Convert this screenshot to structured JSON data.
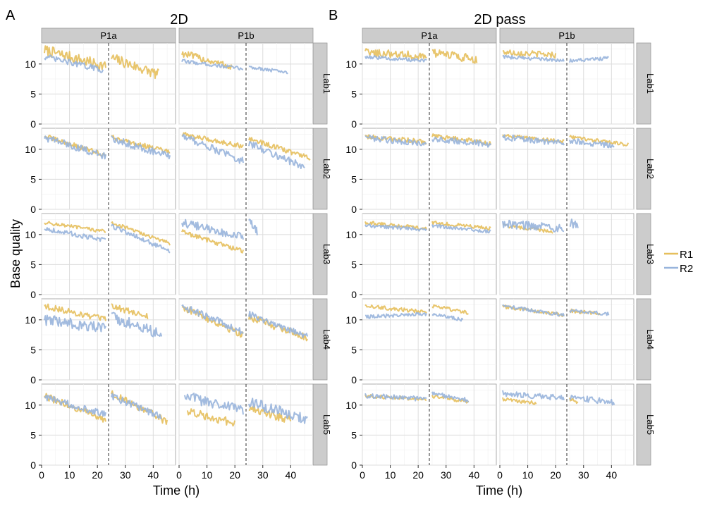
{
  "figure": {
    "ylabel": "Base quality",
    "xlabel": "Time (h)",
    "legend": {
      "position": "right",
      "items": [
        {
          "name": "R1",
          "color": "#e6bf5c"
        },
        {
          "name": "R2",
          "color": "#98b4dc"
        }
      ]
    }
  },
  "panels": [
    {
      "letter": "A",
      "title": "2D",
      "columns": [
        "P1a",
        "P1b"
      ],
      "rows": [
        "Lab1",
        "Lab2",
        "Lab3",
        "Lab4",
        "Lab5"
      ]
    },
    {
      "letter": "B",
      "title": "2D pass",
      "columns": [
        "P1a",
        "P1b"
      ],
      "rows": [
        "Lab1",
        "Lab2",
        "Lab3",
        "Lab4",
        "Lab5"
      ]
    }
  ],
  "chart_data": {
    "type": "line",
    "x_label": "Time (h)",
    "y_label": "Base quality",
    "xlim": [
      0,
      48
    ],
    "ylim": [
      0,
      13.5
    ],
    "x_ticks": [
      0,
      10,
      20,
      30,
      40
    ],
    "y_ticks": [
      0,
      5,
      10
    ],
    "vline_x": 24,
    "vline_style": "dashed",
    "grid": true,
    "legend_position": "right",
    "series_names": [
      "R1",
      "R2"
    ],
    "colors": {
      "R1": "#e6bf5c",
      "R2": "#98b4dc"
    },
    "facets": [
      {
        "panel": "2D",
        "col": "P1a",
        "row": "Lab1",
        "R1": {
          "seg1": [
            1,
            23,
            12.3,
            9.6
          ],
          "seg2": [
            25,
            42,
            11.0,
            8.2
          ],
          "noise": 0.9
        },
        "R2": {
          "seg1": [
            1,
            22,
            11.2,
            9.0
          ],
          "seg2": null,
          "noise": 0.5
        }
      },
      {
        "panel": "2D",
        "col": "P1b",
        "row": "Lab1",
        "R1": {
          "seg1": [
            1,
            19,
            11.8,
            9.5
          ],
          "seg2": null,
          "noise": 0.6
        },
        "R2": {
          "seg1": [
            1,
            23,
            10.5,
            9.2
          ],
          "seg2": [
            25,
            39,
            9.5,
            8.6
          ],
          "noise": 0.3
        }
      },
      {
        "panel": "2D",
        "col": "P1a",
        "row": "Lab2",
        "R1": {
          "seg1": [
            1,
            23,
            12.2,
            9.0
          ],
          "seg2": [
            25,
            46,
            12.0,
            9.5
          ],
          "noise": 0.4
        },
        "R2": {
          "seg1": [
            1,
            23,
            12.0,
            8.8
          ],
          "seg2": [
            25,
            46,
            11.8,
            8.8
          ],
          "noise": 0.6
        }
      },
      {
        "panel": "2D",
        "col": "P1b",
        "row": "Lab2",
        "R1": {
          "seg1": [
            1,
            23,
            12.5,
            10.5
          ],
          "seg2": [
            25,
            47,
            11.8,
            8.5
          ],
          "noise": 0.4
        },
        "R2": {
          "seg1": [
            1,
            23,
            12.3,
            8.0
          ],
          "seg2": [
            25,
            45,
            11.0,
            7.0
          ],
          "noise": 0.6
        }
      },
      {
        "panel": "2D",
        "col": "P1a",
        "row": "Lab3",
        "R1": {
          "seg1": [
            1,
            23,
            12.0,
            10.5
          ],
          "seg2": [
            25,
            46,
            12.0,
            8.5
          ],
          "noise": 0.3
        },
        "R2": {
          "seg1": [
            1,
            23,
            11.0,
            9.0
          ],
          "seg2": [
            25,
            46,
            11.5,
            7.2
          ],
          "noise": 0.4
        }
      },
      {
        "panel": "2D",
        "col": "P1b",
        "row": "Lab3",
        "R1": {
          "seg1": [
            1,
            23,
            10.5,
            7.2
          ],
          "seg2": null,
          "noise": 0.4
        },
        "R2": {
          "seg1": [
            1,
            23,
            12.0,
            9.5
          ],
          "seg2": [
            25,
            28,
            12.2,
            10.5
          ],
          "noise": 0.7
        }
      },
      {
        "panel": "2D",
        "col": "P1a",
        "row": "Lab4",
        "R1": {
          "seg1": [
            1,
            23,
            12.3,
            10.0
          ],
          "seg2": [
            25,
            38,
            12.3,
            10.5
          ],
          "noise": 0.5
        },
        "R2": {
          "seg1": [
            1,
            23,
            10.0,
            8.5
          ],
          "seg2": [
            25,
            43,
            10.5,
            7.5
          ],
          "noise": 0.9
        }
      },
      {
        "panel": "2D",
        "col": "P1b",
        "row": "Lab4",
        "R1": {
          "seg1": [
            1,
            23,
            12.2,
            7.5
          ],
          "seg2": [
            25,
            46,
            10.5,
            7.0
          ],
          "noise": 0.6
        },
        "R2": {
          "seg1": [
            1,
            23,
            12.3,
            8.0
          ],
          "seg2": [
            25,
            46,
            11.0,
            7.2
          ],
          "noise": 0.6
        }
      },
      {
        "panel": "2D",
        "col": "P1a",
        "row": "Lab5",
        "R1": {
          "seg1": [
            1,
            23,
            11.5,
            7.5
          ],
          "seg2": [
            25,
            45,
            12.0,
            7.2
          ],
          "noise": 0.6
        },
        "R2": {
          "seg1": [
            1,
            23,
            11.3,
            8.5
          ],
          "seg2": [
            25,
            43,
            11.5,
            8.0
          ],
          "noise": 0.6
        }
      },
      {
        "panel": "2D",
        "col": "P1b",
        "row": "Lab5",
        "R1": {
          "seg1": [
            3,
            20,
            9.0,
            7.0
          ],
          "seg2": [
            25,
            40,
            9.5,
            7.5
          ],
          "noise": 0.7
        },
        "R2": {
          "seg1": [
            2,
            23,
            11.5,
            9.0
          ],
          "seg2": [
            25,
            46,
            10.5,
            7.5
          ],
          "noise": 0.9
        }
      },
      {
        "panel": "2D pass",
        "col": "P1a",
        "row": "Lab1",
        "R1": {
          "seg1": [
            1,
            23,
            12.0,
            11.3
          ],
          "seg2": [
            25,
            41,
            11.8,
            10.8
          ],
          "noise": 0.7
        },
        "R2": {
          "seg1": [
            1,
            23,
            11.2,
            10.5
          ],
          "seg2": null,
          "noise": 0.3
        }
      },
      {
        "panel": "2D pass",
        "col": "P1b",
        "row": "Lab1",
        "R1": {
          "seg1": [
            1,
            20,
            12.0,
            11.5
          ],
          "seg2": null,
          "noise": 0.5
        },
        "R2": {
          "seg1": [
            1,
            23,
            11.2,
            10.6
          ],
          "seg2": [
            25,
            39,
            10.5,
            11.0
          ],
          "noise": 0.3
        }
      },
      {
        "panel": "2D pass",
        "col": "P1a",
        "row": "Lab2",
        "R1": {
          "seg1": [
            1,
            23,
            12.2,
            11.2
          ],
          "seg2": [
            25,
            46,
            12.2,
            11.0
          ],
          "noise": 0.4
        },
        "R2": {
          "seg1": [
            1,
            23,
            12.0,
            10.8
          ],
          "seg2": [
            25,
            46,
            11.8,
            10.8
          ],
          "noise": 0.5
        }
      },
      {
        "panel": "2D pass",
        "col": "P1b",
        "row": "Lab2",
        "R1": {
          "seg1": [
            1,
            23,
            12.3,
            11.3
          ],
          "seg2": [
            25,
            46,
            12.0,
            10.8
          ],
          "noise": 0.3
        },
        "R2": {
          "seg1": [
            1,
            23,
            12.0,
            11.0
          ],
          "seg2": [
            25,
            41,
            11.5,
            10.5
          ],
          "noise": 0.5
        }
      },
      {
        "panel": "2D pass",
        "col": "P1a",
        "row": "Lab3",
        "R1": {
          "seg1": [
            1,
            23,
            12.0,
            11.0
          ],
          "seg2": [
            25,
            46,
            12.0,
            11.0
          ],
          "noise": 0.3
        },
        "R2": {
          "seg1": [
            1,
            23,
            11.5,
            10.8
          ],
          "seg2": [
            25,
            46,
            11.5,
            10.5
          ],
          "noise": 0.3
        }
      },
      {
        "panel": "2D pass",
        "col": "P1b",
        "row": "Lab3",
        "R1": {
          "seg1": [
            1,
            19,
            11.5,
            10.5
          ],
          "seg2": null,
          "noise": 0.3
        },
        "R2": {
          "seg1": [
            1,
            23,
            11.8,
            11.0
          ],
          "seg2": [
            25,
            28,
            12.0,
            11.5
          ],
          "noise": 0.7
        }
      },
      {
        "panel": "2D pass",
        "col": "P1a",
        "row": "Lab4",
        "R1": {
          "seg1": [
            1,
            23,
            12.3,
            11.3
          ],
          "seg2": [
            25,
            38,
            12.3,
            11.2
          ],
          "noise": 0.3
        },
        "R2": {
          "seg1": [
            1,
            23,
            10.5,
            11.0
          ],
          "seg2": [
            25,
            36,
            11.0,
            10.0
          ],
          "noise": 0.3
        }
      },
      {
        "panel": "2D pass",
        "col": "P1b",
        "row": "Lab4",
        "R1": {
          "seg1": [
            1,
            23,
            12.2,
            10.8
          ],
          "seg2": [
            25,
            36,
            11.5,
            11.0
          ],
          "noise": 0.3
        },
        "R2": {
          "seg1": [
            1,
            23,
            12.3,
            10.8
          ],
          "seg2": [
            25,
            39,
            11.5,
            11.0
          ],
          "noise": 0.3
        }
      },
      {
        "panel": "2D pass",
        "col": "P1a",
        "row": "Lab5",
        "R1": {
          "seg1": [
            1,
            23,
            11.5,
            11.0
          ],
          "seg2": [
            25,
            38,
            11.5,
            10.5
          ],
          "noise": 0.3
        },
        "R2": {
          "seg1": [
            1,
            23,
            11.6,
            11.0
          ],
          "seg2": [
            25,
            38,
            12.0,
            10.8
          ],
          "noise": 0.4
        }
      },
      {
        "panel": "2D pass",
        "col": "P1b",
        "row": "Lab5",
        "R1": {
          "seg1": [
            1,
            13,
            11.0,
            10.3
          ],
          "seg2": [
            25,
            28,
            11.0,
            10.5
          ],
          "noise": 0.3
        },
        "R2": {
          "seg1": [
            1,
            23,
            12.0,
            11.2
          ],
          "seg2": [
            25,
            41,
            11.3,
            10.5
          ],
          "noise": 0.5
        }
      }
    ]
  }
}
